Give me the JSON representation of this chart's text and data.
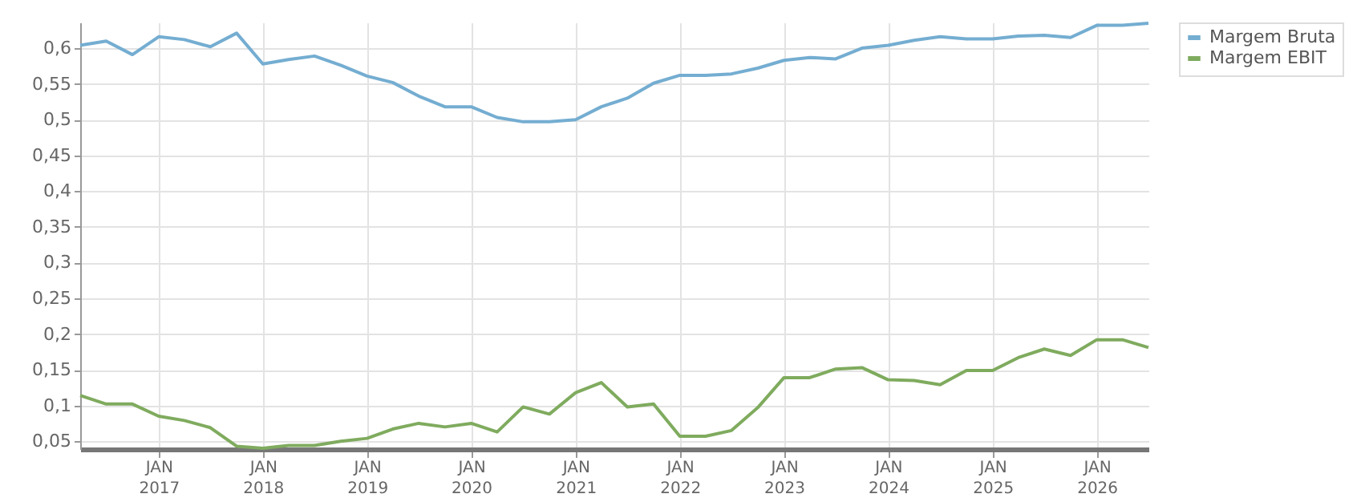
{
  "chart_data": {
    "type": "line",
    "legend": "top right",
    "grid": true,
    "x": [
      "2016-04",
      "2016-07",
      "2016-10",
      "2017-01",
      "2017-04",
      "2017-07",
      "2017-10",
      "2018-01",
      "2018-04",
      "2018-07",
      "2018-10",
      "2019-01",
      "2019-04",
      "2019-07",
      "2019-10",
      "2020-01",
      "2020-04",
      "2020-07",
      "2020-10",
      "2021-01",
      "2021-04",
      "2021-07",
      "2021-10",
      "2022-01",
      "2022-04",
      "2022-07",
      "2022-10",
      "2023-01",
      "2023-04",
      "2023-07",
      "2023-10",
      "2024-01",
      "2024-04",
      "2024-07",
      "2024-10",
      "2025-01",
      "2025-04",
      "2025-07",
      "2025-10",
      "2026-01",
      "2026-04",
      "2026-07"
    ],
    "series": [
      {
        "name": "Margem Bruta",
        "color": "#74add1",
        "values": [
          0.604,
          0.61,
          0.591,
          0.616,
          0.612,
          0.602,
          0.621,
          0.578,
          0.584,
          0.589,
          0.576,
          0.561,
          0.552,
          0.533,
          0.518,
          0.518,
          0.503,
          0.497,
          0.497,
          0.5,
          0.518,
          0.53,
          0.551,
          0.562,
          0.562,
          0.564,
          0.572,
          0.583,
          0.587,
          0.585,
          0.6,
          0.604,
          0.611,
          0.616,
          0.613,
          0.613,
          0.617,
          0.618,
          0.615,
          0.632,
          0.632,
          0.635
        ]
      },
      {
        "name": "Margem EBIT",
        "color": "#7fab5e",
        "values": [
          0.114,
          0.102,
          0.102,
          0.085,
          0.079,
          0.069,
          0.043,
          0.04,
          0.044,
          0.044,
          0.05,
          0.054,
          0.067,
          0.075,
          0.07,
          0.075,
          0.063,
          0.098,
          0.088,
          0.118,
          0.132,
          0.098,
          0.102,
          0.057,
          0.057,
          0.065,
          0.097,
          0.139,
          0.139,
          0.151,
          0.153,
          0.136,
          0.135,
          0.129,
          0.149,
          0.149,
          0.167,
          0.179,
          0.17,
          0.192,
          0.192,
          0.181
        ]
      }
    ],
    "xlim": [
      "2016-04",
      "2026-07"
    ],
    "xticks": [
      {
        "value": "2017-01",
        "label": "JAN 2017"
      },
      {
        "value": "2018-01",
        "label": "JAN 2018"
      },
      {
        "value": "2019-01",
        "label": "JAN 2019"
      },
      {
        "value": "2020-01",
        "label": "JAN 2020"
      },
      {
        "value": "2021-01",
        "label": "JAN 2021"
      },
      {
        "value": "2022-01",
        "label": "JAN 2022"
      },
      {
        "value": "2023-01",
        "label": "JAN 2023"
      },
      {
        "value": "2024-01",
        "label": "JAN 2024"
      },
      {
        "value": "2025-01",
        "label": "JAN 2025"
      },
      {
        "value": "2026-01",
        "label": "JAN 2026"
      }
    ],
    "ylim": [
      0.039,
      0.636
    ],
    "yticks": [
      {
        "value": 0.05,
        "label": "0,05"
      },
      {
        "value": 0.1,
        "label": "0,1"
      },
      {
        "value": 0.15,
        "label": "0,15"
      },
      {
        "value": 0.2,
        "label": "0,2"
      },
      {
        "value": 0.25,
        "label": "0,25"
      },
      {
        "value": 0.3,
        "label": "0,3"
      },
      {
        "value": 0.35,
        "label": "0,35"
      },
      {
        "value": 0.4,
        "label": "0,4"
      },
      {
        "value": 0.45,
        "label": "0,45"
      },
      {
        "value": 0.5,
        "label": "0,5"
      },
      {
        "value": 0.55,
        "label": "0,55"
      },
      {
        "value": 0.6,
        "label": "0,6"
      }
    ]
  }
}
